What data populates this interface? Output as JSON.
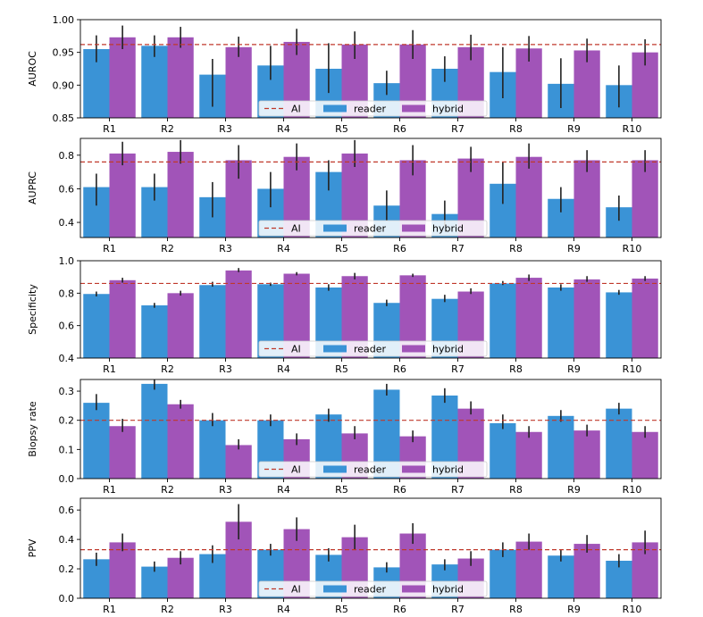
{
  "colors": {
    "reader": "#3a93d6",
    "hybrid": "#a154b8",
    "ai": "#c0392b",
    "err": "#222222",
    "axis": "#000000"
  },
  "chart_data": [
    {
      "type": "bar",
      "ylabel": "AUROC",
      "ylim": [
        0.85,
        1.0
      ],
      "yticks": [
        0.85,
        0.9,
        0.95,
        1.0
      ],
      "ytick_labels": [
        "0.85",
        "0.90",
        "0.95",
        "1.00"
      ],
      "ai_line": 0.962,
      "categories": [
        "R1",
        "R2",
        "R3",
        "R4",
        "R5",
        "R6",
        "R7",
        "R8",
        "R9",
        "R10"
      ],
      "legend": [
        "AI",
        "reader",
        "hybrid"
      ],
      "series": [
        {
          "name": "reader",
          "values": [
            0.955,
            0.96,
            0.916,
            0.93,
            0.925,
            0.903,
            0.925,
            0.92,
            0.902,
            0.9
          ],
          "err": [
            [
              0.935,
              0.976
            ],
            [
              0.943,
              0.976
            ],
            [
              0.867,
              0.94
            ],
            [
              0.908,
              0.96
            ],
            [
              0.888,
              0.964
            ],
            [
              0.885,
              0.922
            ],
            [
              0.905,
              0.944
            ],
            [
              0.88,
              0.958
            ],
            [
              0.865,
              0.941
            ],
            [
              0.866,
              0.93
            ]
          ]
        },
        {
          "name": "hybrid",
          "values": [
            0.973,
            0.973,
            0.958,
            0.966,
            0.962,
            0.962,
            0.958,
            0.956,
            0.953,
            0.95
          ],
          "err": [
            [
              0.955,
              0.991
            ],
            [
              0.957,
              0.989
            ],
            [
              0.943,
              0.974
            ],
            [
              0.946,
              0.986
            ],
            [
              0.94,
              0.982
            ],
            [
              0.94,
              0.984
            ],
            [
              0.938,
              0.977
            ],
            [
              0.936,
              0.975
            ],
            [
              0.935,
              0.971
            ],
            [
              0.93,
              0.97
            ]
          ]
        }
      ]
    },
    {
      "type": "bar",
      "ylabel": "AUPRC",
      "ylim": [
        0.31,
        0.9
      ],
      "yticks": [
        0.4,
        0.6,
        0.8
      ],
      "ytick_labels": [
        "0.4",
        "0.6",
        "0.8"
      ],
      "ai_line": 0.76,
      "categories": [
        "R1",
        "R2",
        "R3",
        "R4",
        "R5",
        "R6",
        "R7",
        "R8",
        "R9",
        "R10"
      ],
      "legend": [
        "AI",
        "reader",
        "hybrid"
      ],
      "series": [
        {
          "name": "reader",
          "values": [
            0.61,
            0.61,
            0.55,
            0.6,
            0.7,
            0.5,
            0.45,
            0.63,
            0.54,
            0.49
          ],
          "err": [
            [
              0.5,
              0.69
            ],
            [
              0.53,
              0.69
            ],
            [
              0.43,
              0.64
            ],
            [
              0.49,
              0.7
            ],
            [
              0.59,
              0.77
            ],
            [
              0.41,
              0.59
            ],
            [
              0.38,
              0.53
            ],
            [
              0.51,
              0.76
            ],
            [
              0.46,
              0.61
            ],
            [
              0.41,
              0.56
            ]
          ]
        },
        {
          "name": "hybrid",
          "values": [
            0.81,
            0.82,
            0.77,
            0.79,
            0.81,
            0.77,
            0.78,
            0.79,
            0.77,
            0.77
          ],
          "err": [
            [
              0.74,
              0.88
            ],
            [
              0.75,
              0.89
            ],
            [
              0.66,
              0.86
            ],
            [
              0.71,
              0.87
            ],
            [
              0.73,
              0.89
            ],
            [
              0.68,
              0.86
            ],
            [
              0.7,
              0.85
            ],
            [
              0.72,
              0.87
            ],
            [
              0.7,
              0.83
            ],
            [
              0.7,
              0.83
            ]
          ]
        }
      ]
    },
    {
      "type": "bar",
      "ylabel": "Specificity",
      "ylim": [
        0.4,
        1.0
      ],
      "yticks": [
        0.4,
        0.6,
        0.8,
        1.0
      ],
      "ytick_labels": [
        "0.4",
        "0.6",
        "0.8",
        "1.0"
      ],
      "ai_line": 0.86,
      "categories": [
        "R1",
        "R2",
        "R3",
        "R4",
        "R5",
        "R6",
        "R7",
        "R8",
        "R9",
        "R10"
      ],
      "legend": [
        "AI",
        "reader",
        "hybrid"
      ],
      "series": [
        {
          "name": "reader",
          "values": [
            0.795,
            0.725,
            0.85,
            0.855,
            0.835,
            0.74,
            0.765,
            0.86,
            0.835,
            0.805
          ],
          "err": [
            [
              0.78,
              0.81
            ],
            [
              0.71,
              0.74
            ],
            [
              0.84,
              0.87
            ],
            [
              0.845,
              0.865
            ],
            [
              0.815,
              0.855
            ],
            [
              0.72,
              0.76
            ],
            [
              0.745,
              0.79
            ],
            [
              0.85,
              0.875
            ],
            [
              0.815,
              0.855
            ],
            [
              0.79,
              0.82
            ]
          ]
        },
        {
          "name": "hybrid",
          "values": [
            0.88,
            0.8,
            0.94,
            0.92,
            0.905,
            0.91,
            0.81,
            0.895,
            0.885,
            0.89
          ],
          "err": [
            [
              0.865,
              0.895
            ],
            [
              0.785,
              0.815
            ],
            [
              0.93,
              0.955
            ],
            [
              0.91,
              0.93
            ],
            [
              0.885,
              0.925
            ],
            [
              0.9,
              0.92
            ],
            [
              0.795,
              0.83
            ],
            [
              0.875,
              0.915
            ],
            [
              0.87,
              0.905
            ],
            [
              0.875,
              0.905
            ]
          ]
        }
      ]
    },
    {
      "type": "bar",
      "ylabel": "Biopsy rate",
      "ylim": [
        0.0,
        0.34
      ],
      "yticks": [
        0.0,
        0.1,
        0.2,
        0.3
      ],
      "ytick_labels": [
        "0.0",
        "0.1",
        "0.2",
        "0.3"
      ],
      "ai_line": 0.2,
      "categories": [
        "R1",
        "R2",
        "R3",
        "R4",
        "R5",
        "R6",
        "R7",
        "R8",
        "R9",
        "R10"
      ],
      "legend": [
        "AI",
        "reader",
        "hybrid"
      ],
      "series": [
        {
          "name": "reader",
          "values": [
            0.26,
            0.325,
            0.2,
            0.2,
            0.22,
            0.305,
            0.285,
            0.19,
            0.215,
            0.24
          ],
          "err": [
            [
              0.235,
              0.29
            ],
            [
              0.305,
              0.345
            ],
            [
              0.18,
              0.225
            ],
            [
              0.18,
              0.22
            ],
            [
              0.195,
              0.24
            ],
            [
              0.285,
              0.325
            ],
            [
              0.26,
              0.31
            ],
            [
              0.17,
              0.22
            ],
            [
              0.195,
              0.235
            ],
            [
              0.22,
              0.26
            ]
          ]
        },
        {
          "name": "hybrid",
          "values": [
            0.18,
            0.255,
            0.115,
            0.135,
            0.155,
            0.145,
            0.24,
            0.16,
            0.165,
            0.16
          ],
          "err": [
            [
              0.16,
              0.205
            ],
            [
              0.24,
              0.27
            ],
            [
              0.1,
              0.135
            ],
            [
              0.115,
              0.155
            ],
            [
              0.135,
              0.18
            ],
            [
              0.125,
              0.165
            ],
            [
              0.22,
              0.265
            ],
            [
              0.14,
              0.18
            ],
            [
              0.145,
              0.185
            ],
            [
              0.14,
              0.18
            ]
          ]
        }
      ]
    },
    {
      "type": "bar",
      "ylabel": "PPV",
      "ylim": [
        0.0,
        0.68
      ],
      "yticks": [
        0.0,
        0.2,
        0.4,
        0.6
      ],
      "ytick_labels": [
        "0.0",
        "0.2",
        "0.4",
        "0.6"
      ],
      "ai_line": 0.33,
      "categories": [
        "R1",
        "R2",
        "R3",
        "R4",
        "R5",
        "R6",
        "R7",
        "R8",
        "R9",
        "R10"
      ],
      "legend": [
        "AI",
        "reader",
        "hybrid"
      ],
      "series": [
        {
          "name": "reader",
          "values": [
            0.265,
            0.215,
            0.3,
            0.33,
            0.295,
            0.21,
            0.23,
            0.33,
            0.29,
            0.255
          ],
          "err": [
            [
              0.22,
              0.31
            ],
            [
              0.18,
              0.25
            ],
            [
              0.24,
              0.36
            ],
            [
              0.29,
              0.37
            ],
            [
              0.25,
              0.34
            ],
            [
              0.175,
              0.245
            ],
            [
              0.19,
              0.265
            ],
            [
              0.28,
              0.38
            ],
            [
              0.25,
              0.33
            ],
            [
              0.21,
              0.3
            ]
          ]
        },
        {
          "name": "hybrid",
          "values": [
            0.38,
            0.275,
            0.52,
            0.47,
            0.415,
            0.44,
            0.27,
            0.385,
            0.37,
            0.38
          ],
          "err": [
            [
              0.32,
              0.44
            ],
            [
              0.23,
              0.32
            ],
            [
              0.4,
              0.64
            ],
            [
              0.39,
              0.55
            ],
            [
              0.33,
              0.5
            ],
            [
              0.37,
              0.51
            ],
            [
              0.22,
              0.32
            ],
            [
              0.33,
              0.44
            ],
            [
              0.31,
              0.43
            ],
            [
              0.3,
              0.46
            ]
          ]
        }
      ]
    }
  ]
}
